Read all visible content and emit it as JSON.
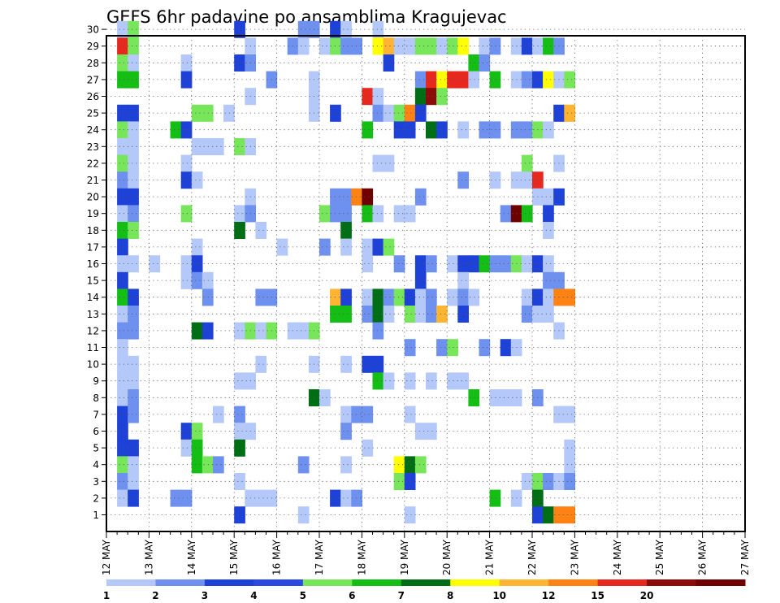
{
  "chart_data": {
    "type": "heatmap",
    "title": "GEFS 6hr padavine po ansamblima Kragujevac",
    "x_ticks": [
      "12 MAY",
      "13 MAY",
      "14 MAY",
      "15 MAY",
      "16 MAY",
      "17 MAY",
      "18 MAY",
      "19 MAY",
      "20 MAY",
      "21 MAY",
      "22 MAY",
      "23 MAY",
      "24 MAY",
      "25 MAY",
      "26 MAY",
      "27 MAY"
    ],
    "y_ticks": [
      1,
      2,
      3,
      4,
      5,
      6,
      7,
      8,
      9,
      10,
      11,
      12,
      13,
      14,
      15,
      16,
      17,
      18,
      19,
      20,
      21,
      22,
      23,
      24,
      25,
      26,
      27,
      28,
      29,
      30
    ],
    "x_range": [
      "12 MAY",
      "27 MAY"
    ],
    "x_step": "6hr",
    "grid": true,
    "legend_levels": [
      "1",
      "2",
      "3",
      "4",
      "5",
      "6",
      "7",
      "8",
      "10",
      "12",
      "15",
      "20"
    ],
    "legend_colors": [
      "#b4c8fa",
      "#6e91f0",
      "#1e41d7",
      "#2b49e0",
      "#78e65a",
      "#14be14",
      "#006e14",
      "#ffff00",
      "#ffb432",
      "#ff8214",
      "#e6281e",
      "#8c0a0a",
      "#6e0000"
    ],
    "cells_note": "each cell: [member, column index (6hr steps from 12 MAY), level index into legend_colors]",
    "cells": [
      [
        30,
        1,
        0
      ],
      [
        30,
        2,
        4
      ],
      [
        30,
        12,
        2
      ],
      [
        30,
        18,
        1
      ],
      [
        30,
        19,
        1
      ],
      [
        30,
        21,
        2
      ],
      [
        30,
        22,
        0
      ],
      [
        30,
        25,
        0
      ],
      [
        29,
        1,
        10
      ],
      [
        29,
        2,
        4
      ],
      [
        29,
        13,
        0
      ],
      [
        29,
        17,
        1
      ],
      [
        29,
        18,
        0
      ],
      [
        29,
        20,
        0
      ],
      [
        29,
        21,
        4
      ],
      [
        29,
        22,
        1
      ],
      [
        29,
        23,
        1
      ],
      [
        29,
        25,
        7
      ],
      [
        29,
        26,
        8
      ],
      [
        29,
        27,
        0
      ],
      [
        29,
        28,
        0
      ],
      [
        29,
        29,
        4
      ],
      [
        29,
        30,
        4
      ],
      [
        29,
        31,
        0
      ],
      [
        29,
        32,
        4
      ],
      [
        29,
        33,
        7
      ],
      [
        29,
        35,
        0
      ],
      [
        29,
        36,
        1
      ],
      [
        29,
        38,
        0
      ],
      [
        29,
        39,
        2
      ],
      [
        29,
        40,
        0
      ],
      [
        29,
        41,
        5
      ],
      [
        29,
        42,
        1
      ],
      [
        28,
        1,
        4
      ],
      [
        28,
        2,
        0
      ],
      [
        28,
        7,
        0
      ],
      [
        28,
        12,
        2
      ],
      [
        28,
        13,
        1
      ],
      [
        28,
        26,
        2
      ],
      [
        28,
        34,
        5
      ],
      [
        28,
        35,
        1
      ],
      [
        27,
        1,
        5
      ],
      [
        27,
        2,
        5
      ],
      [
        27,
        7,
        2
      ],
      [
        27,
        15,
        1
      ],
      [
        27,
        19,
        0
      ],
      [
        27,
        29,
        1
      ],
      [
        27,
        30,
        10
      ],
      [
        27,
        31,
        7
      ],
      [
        27,
        32,
        10
      ],
      [
        27,
        33,
        10
      ],
      [
        27,
        34,
        0
      ],
      [
        27,
        36,
        5
      ],
      [
        27,
        38,
        0
      ],
      [
        27,
        39,
        1
      ],
      [
        27,
        40,
        2
      ],
      [
        27,
        41,
        7
      ],
      [
        27,
        42,
        0
      ],
      [
        27,
        43,
        4
      ],
      [
        26,
        13,
        0
      ],
      [
        26,
        19,
        0
      ],
      [
        26,
        24,
        10
      ],
      [
        26,
        25,
        0
      ],
      [
        26,
        29,
        6
      ],
      [
        26,
        30,
        11
      ],
      [
        26,
        31,
        4
      ],
      [
        25,
        1,
        2
      ],
      [
        25,
        2,
        2
      ],
      [
        25,
        8,
        4
      ],
      [
        25,
        9,
        4
      ],
      [
        25,
        11,
        0
      ],
      [
        25,
        19,
        0
      ],
      [
        25,
        21,
        2
      ],
      [
        25,
        25,
        1
      ],
      [
        25,
        26,
        0
      ],
      [
        25,
        27,
        4
      ],
      [
        25,
        28,
        9
      ],
      [
        25,
        29,
        2
      ],
      [
        25,
        42,
        2
      ],
      [
        25,
        43,
        8
      ],
      [
        24,
        1,
        4
      ],
      [
        24,
        2,
        0
      ],
      [
        24,
        6,
        5
      ],
      [
        24,
        7,
        2
      ],
      [
        24,
        24,
        5
      ],
      [
        24,
        27,
        2
      ],
      [
        24,
        28,
        2
      ],
      [
        24,
        30,
        6
      ],
      [
        24,
        31,
        2
      ],
      [
        24,
        33,
        0
      ],
      [
        24,
        35,
        1
      ],
      [
        24,
        36,
        1
      ],
      [
        24,
        38,
        1
      ],
      [
        24,
        39,
        1
      ],
      [
        24,
        40,
        4
      ],
      [
        24,
        41,
        0
      ],
      [
        23,
        1,
        0
      ],
      [
        23,
        2,
        0
      ],
      [
        23,
        8,
        0
      ],
      [
        23,
        9,
        0
      ],
      [
        23,
        10,
        0
      ],
      [
        23,
        12,
        4
      ],
      [
        23,
        13,
        0
      ],
      [
        22,
        1,
        4
      ],
      [
        22,
        2,
        0
      ],
      [
        22,
        7,
        0
      ],
      [
        22,
        25,
        0
      ],
      [
        22,
        26,
        0
      ],
      [
        22,
        39,
        4
      ],
      [
        22,
        42,
        0
      ],
      [
        21,
        1,
        1
      ],
      [
        21,
        2,
        0
      ],
      [
        21,
        7,
        2
      ],
      [
        21,
        8,
        0
      ],
      [
        21,
        33,
        1
      ],
      [
        21,
        36,
        0
      ],
      [
        21,
        38,
        0
      ],
      [
        21,
        39,
        0
      ],
      [
        21,
        40,
        10
      ],
      [
        20,
        1,
        2
      ],
      [
        20,
        2,
        2
      ],
      [
        20,
        13,
        0
      ],
      [
        20,
        21,
        1
      ],
      [
        20,
        22,
        1
      ],
      [
        20,
        23,
        9
      ],
      [
        20,
        24,
        12
      ],
      [
        20,
        29,
        1
      ],
      [
        20,
        40,
        0
      ],
      [
        20,
        41,
        0
      ],
      [
        20,
        42,
        2
      ],
      [
        19,
        1,
        0
      ],
      [
        19,
        2,
        1
      ],
      [
        19,
        7,
        4
      ],
      [
        19,
        12,
        0
      ],
      [
        19,
        13,
        1
      ],
      [
        19,
        20,
        4
      ],
      [
        19,
        21,
        1
      ],
      [
        19,
        22,
        1
      ],
      [
        19,
        24,
        5
      ],
      [
        19,
        25,
        0
      ],
      [
        19,
        27,
        0
      ],
      [
        19,
        28,
        0
      ],
      [
        19,
        37,
        1
      ],
      [
        19,
        38,
        12
      ],
      [
        19,
        39,
        5
      ],
      [
        19,
        41,
        2
      ],
      [
        18,
        1,
        5
      ],
      [
        18,
        2,
        4
      ],
      [
        18,
        12,
        6
      ],
      [
        18,
        14,
        0
      ],
      [
        18,
        22,
        6
      ],
      [
        18,
        41,
        0
      ],
      [
        17,
        1,
        2
      ],
      [
        17,
        8,
        0
      ],
      [
        17,
        16,
        0
      ],
      [
        17,
        20,
        1
      ],
      [
        17,
        22,
        0
      ],
      [
        17,
        24,
        0
      ],
      [
        17,
        25,
        2
      ],
      [
        17,
        26,
        4
      ],
      [
        16,
        1,
        0
      ],
      [
        16,
        2,
        0
      ],
      [
        16,
        4,
        0
      ],
      [
        16,
        7,
        0
      ],
      [
        16,
        8,
        2
      ],
      [
        16,
        24,
        0
      ],
      [
        16,
        27,
        1
      ],
      [
        16,
        29,
        2
      ],
      [
        16,
        30,
        1
      ],
      [
        16,
        32,
        0
      ],
      [
        16,
        33,
        2
      ],
      [
        16,
        34,
        2
      ],
      [
        16,
        35,
        5
      ],
      [
        16,
        36,
        1
      ],
      [
        16,
        37,
        1
      ],
      [
        16,
        38,
        4
      ],
      [
        16,
        39,
        0
      ],
      [
        16,
        40,
        2
      ],
      [
        16,
        41,
        0
      ],
      [
        15,
        1,
        2
      ],
      [
        15,
        7,
        0
      ],
      [
        15,
        8,
        1
      ],
      [
        15,
        9,
        0
      ],
      [
        15,
        29,
        2
      ],
      [
        15,
        33,
        0
      ],
      [
        15,
        41,
        1
      ],
      [
        15,
        42,
        1
      ],
      [
        14,
        1,
        5
      ],
      [
        14,
        2,
        2
      ],
      [
        14,
        9,
        1
      ],
      [
        14,
        14,
        1
      ],
      [
        14,
        15,
        1
      ],
      [
        14,
        21,
        8
      ],
      [
        14,
        22,
        2
      ],
      [
        14,
        24,
        0
      ],
      [
        14,
        25,
        6
      ],
      [
        14,
        26,
        1
      ],
      [
        14,
        27,
        4
      ],
      [
        14,
        28,
        2
      ],
      [
        14,
        29,
        0
      ],
      [
        14,
        30,
        1
      ],
      [
        14,
        32,
        0
      ],
      [
        14,
        33,
        1
      ],
      [
        14,
        34,
        0
      ],
      [
        14,
        39,
        0
      ],
      [
        14,
        40,
        2
      ],
      [
        14,
        41,
        0
      ],
      [
        14,
        42,
        9
      ],
      [
        14,
        43,
        9
      ],
      [
        13,
        1,
        0
      ],
      [
        13,
        2,
        1
      ],
      [
        13,
        21,
        5
      ],
      [
        13,
        22,
        5
      ],
      [
        13,
        24,
        1
      ],
      [
        13,
        25,
        6
      ],
      [
        13,
        26,
        0
      ],
      [
        13,
        28,
        4
      ],
      [
        13,
        29,
        0
      ],
      [
        13,
        30,
        1
      ],
      [
        13,
        31,
        8
      ],
      [
        13,
        33,
        2
      ],
      [
        13,
        39,
        1
      ],
      [
        13,
        40,
        0
      ],
      [
        13,
        41,
        0
      ],
      [
        12,
        1,
        1
      ],
      [
        12,
        2,
        1
      ],
      [
        12,
        8,
        6
      ],
      [
        12,
        9,
        2
      ],
      [
        12,
        12,
        0
      ],
      [
        12,
        13,
        4
      ],
      [
        12,
        14,
        0
      ],
      [
        12,
        15,
        4
      ],
      [
        12,
        17,
        0
      ],
      [
        12,
        18,
        0
      ],
      [
        12,
        19,
        4
      ],
      [
        12,
        25,
        1
      ],
      [
        12,
        42,
        0
      ],
      [
        11,
        1,
        0
      ],
      [
        11,
        28,
        1
      ],
      [
        11,
        31,
        1
      ],
      [
        11,
        32,
        4
      ],
      [
        11,
        35,
        1
      ],
      [
        11,
        37,
        2
      ],
      [
        11,
        38,
        0
      ],
      [
        10,
        1,
        0
      ],
      [
        10,
        2,
        0
      ],
      [
        10,
        14,
        0
      ],
      [
        10,
        19,
        0
      ],
      [
        10,
        22,
        0
      ],
      [
        10,
        24,
        2
      ],
      [
        10,
        25,
        2
      ],
      [
        9,
        1,
        0
      ],
      [
        9,
        2,
        0
      ],
      [
        9,
        12,
        0
      ],
      [
        9,
        13,
        0
      ],
      [
        9,
        25,
        5
      ],
      [
        9,
        26,
        0
      ],
      [
        9,
        28,
        0
      ],
      [
        9,
        30,
        0
      ],
      [
        9,
        32,
        0
      ],
      [
        9,
        33,
        0
      ],
      [
        8,
        1,
        0
      ],
      [
        8,
        2,
        1
      ],
      [
        8,
        19,
        6
      ],
      [
        8,
        20,
        0
      ],
      [
        8,
        34,
        5
      ],
      [
        8,
        36,
        0
      ],
      [
        8,
        37,
        0
      ],
      [
        8,
        38,
        0
      ],
      [
        8,
        40,
        1
      ],
      [
        7,
        1,
        2
      ],
      [
        7,
        2,
        1
      ],
      [
        7,
        10,
        0
      ],
      [
        7,
        12,
        1
      ],
      [
        7,
        22,
        0
      ],
      [
        7,
        23,
        1
      ],
      [
        7,
        24,
        1
      ],
      [
        7,
        28,
        0
      ],
      [
        7,
        42,
        0
      ],
      [
        7,
        43,
        0
      ],
      [
        6,
        1,
        2
      ],
      [
        6,
        7,
        2
      ],
      [
        6,
        8,
        4
      ],
      [
        6,
        12,
        0
      ],
      [
        6,
        13,
        0
      ],
      [
        6,
        22,
        1
      ],
      [
        6,
        29,
        0
      ],
      [
        6,
        30,
        0
      ],
      [
        5,
        1,
        2
      ],
      [
        5,
        2,
        2
      ],
      [
        5,
        7,
        0
      ],
      [
        5,
        8,
        5
      ],
      [
        5,
        12,
        6
      ],
      [
        5,
        24,
        0
      ],
      [
        5,
        43,
        0
      ],
      [
        4,
        1,
        4
      ],
      [
        4,
        2,
        0
      ],
      [
        4,
        8,
        5
      ],
      [
        4,
        9,
        4
      ],
      [
        4,
        10,
        1
      ],
      [
        4,
        18,
        1
      ],
      [
        4,
        22,
        0
      ],
      [
        4,
        27,
        7
      ],
      [
        4,
        28,
        6
      ],
      [
        4,
        29,
        4
      ],
      [
        4,
        43,
        0
      ],
      [
        3,
        1,
        1
      ],
      [
        3,
        2,
        0
      ],
      [
        3,
        12,
        0
      ],
      [
        3,
        27,
        4
      ],
      [
        3,
        28,
        2
      ],
      [
        3,
        39,
        0
      ],
      [
        3,
        40,
        4
      ],
      [
        3,
        41,
        1
      ],
      [
        3,
        42,
        0
      ],
      [
        3,
        43,
        1
      ],
      [
        2,
        1,
        0
      ],
      [
        2,
        2,
        2
      ],
      [
        2,
        6,
        1
      ],
      [
        2,
        7,
        1
      ],
      [
        2,
        13,
        0
      ],
      [
        2,
        14,
        0
      ],
      [
        2,
        15,
        0
      ],
      [
        2,
        21,
        2
      ],
      [
        2,
        22,
        0
      ],
      [
        2,
        23,
        1
      ],
      [
        2,
        36,
        5
      ],
      [
        2,
        38,
        0
      ],
      [
        2,
        40,
        6
      ],
      [
        1,
        12,
        2
      ],
      [
        1,
        18,
        0
      ],
      [
        1,
        28,
        0
      ],
      [
        1,
        40,
        2
      ],
      [
        1,
        41,
        6
      ],
      [
        1,
        42,
        9
      ],
      [
        1,
        43,
        9
      ]
    ]
  }
}
